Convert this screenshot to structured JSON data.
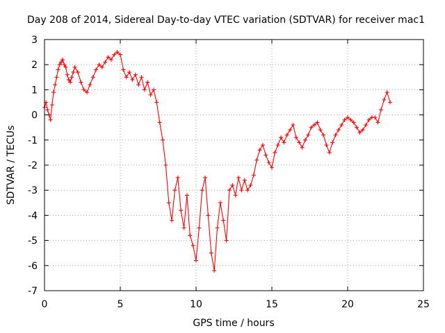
{
  "chart_data": {
    "type": "scatter",
    "title": "Day 208 of 2014, Sidereal Day-to-day VTEC variation (SDTVAR) for receiver mac1",
    "xlabel": "GPS time / hours",
    "ylabel": "SDTVAR / TECUs",
    "xlim": [
      0,
      25
    ],
    "ylim": [
      -7,
      3
    ],
    "xticks": [
      0,
      5,
      10,
      15,
      20,
      25
    ],
    "yticks": [
      -7,
      -6,
      -5,
      -4,
      -3,
      -2,
      -1,
      0,
      1,
      2,
      3
    ],
    "grid": true,
    "marker": "plus",
    "series": [
      {
        "name": "mac1",
        "color": "#ff0000",
        "x": [
          0.0,
          0.1,
          0.2,
          0.3,
          0.4,
          0.5,
          0.6,
          0.7,
          0.8,
          0.9,
          1.0,
          1.1,
          1.2,
          1.3,
          1.4,
          1.5,
          1.6,
          1.7,
          1.8,
          1.9,
          2.0,
          2.2,
          2.4,
          2.6,
          2.8,
          3.0,
          3.2,
          3.4,
          3.6,
          3.8,
          4.0,
          4.2,
          4.4,
          4.6,
          4.8,
          5.0,
          5.2,
          5.4,
          5.6,
          5.8,
          6.0,
          6.2,
          6.4,
          6.6,
          6.8,
          7.0,
          7.2,
          7.4,
          7.6,
          7.8,
          8.0,
          8.2,
          8.4,
          8.6,
          8.8,
          9.0,
          9.2,
          9.4,
          9.6,
          9.8,
          10.0,
          10.2,
          10.4,
          10.6,
          10.8,
          11.0,
          11.2,
          11.4,
          11.6,
          11.8,
          12.0,
          12.2,
          12.4,
          12.6,
          12.8,
          13.0,
          13.2,
          13.4,
          13.6,
          13.8,
          14.0,
          14.2,
          14.4,
          14.6,
          14.8,
          15.0,
          15.2,
          15.4,
          15.6,
          15.8,
          16.0,
          16.2,
          16.4,
          16.6,
          16.8,
          17.0,
          17.2,
          17.4,
          17.6,
          17.8,
          18.0,
          18.2,
          18.4,
          18.6,
          18.8,
          19.0,
          19.2,
          19.4,
          19.6,
          19.8,
          20.0,
          20.2,
          20.4,
          20.6,
          20.8,
          21.0,
          21.2,
          21.4,
          21.6,
          21.8,
          22.0,
          22.2,
          22.4,
          22.6,
          22.8
        ],
        "y": [
          0.3,
          0.5,
          0.2,
          0.0,
          -0.2,
          0.4,
          0.9,
          1.2,
          1.5,
          1.8,
          2.0,
          2.1,
          2.2,
          2.0,
          1.9,
          1.6,
          1.4,
          1.3,
          1.5,
          1.7,
          1.9,
          1.7,
          1.3,
          1.0,
          0.9,
          1.2,
          1.5,
          1.8,
          2.0,
          1.9,
          2.1,
          2.3,
          2.2,
          2.4,
          2.5,
          2.4,
          1.8,
          1.5,
          1.7,
          1.4,
          1.6,
          1.2,
          1.5,
          1.0,
          1.3,
          0.8,
          1.0,
          0.5,
          -0.3,
          -1.0,
          -2.0,
          -3.5,
          -4.2,
          -3.0,
          -2.5,
          -3.8,
          -4.5,
          -3.2,
          -4.8,
          -5.2,
          -5.8,
          -4.5,
          -3.0,
          -2.5,
          -4.0,
          -5.5,
          -6.2,
          -4.5,
          -3.5,
          -4.2,
          -5.0,
          -3.0,
          -2.8,
          -3.2,
          -2.5,
          -3.0,
          -2.6,
          -3.0,
          -2.8,
          -2.4,
          -1.8,
          -1.4,
          -1.2,
          -1.6,
          -1.9,
          -2.1,
          -1.5,
          -1.2,
          -0.9,
          -1.1,
          -0.8,
          -0.6,
          -0.4,
          -0.9,
          -1.1,
          -1.3,
          -1.0,
          -0.8,
          -0.5,
          -0.4,
          -0.3,
          -0.6,
          -0.8,
          -1.2,
          -1.5,
          -1.1,
          -0.8,
          -0.6,
          -0.4,
          -0.2,
          -0.1,
          -0.2,
          -0.3,
          -0.5,
          -0.7,
          -0.6,
          -0.4,
          -0.2,
          -0.1,
          -0.1,
          -0.3,
          0.2,
          0.6,
          0.9,
          0.5
        ]
      }
    ]
  }
}
